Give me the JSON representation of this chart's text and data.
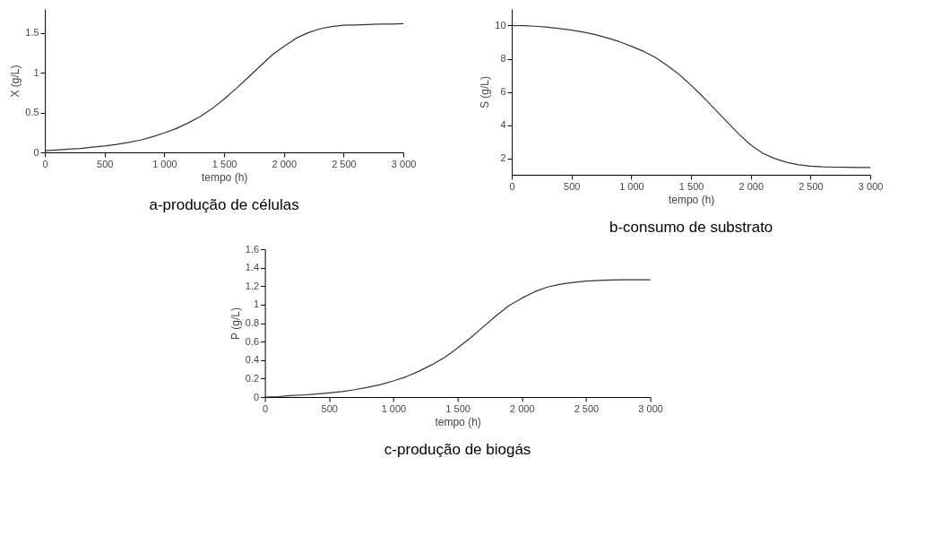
{
  "chart_data": [
    {
      "type": "line",
      "title": "a-produção de células",
      "xlabel": "tempo (h)",
      "ylabel": "X (g/L)",
      "grid": false,
      "xlim": [
        0,
        3000
      ],
      "ylim": [
        0,
        1.8
      ],
      "xticks": [
        0,
        500,
        {
          "value": 1000,
          "label": "1 000"
        },
        {
          "value": 1500,
          "label": "1 500"
        },
        {
          "value": 2000,
          "label": "2 000"
        },
        {
          "value": 2500,
          "label": "2 500"
        },
        {
          "value": 3000,
          "label": "3 000"
        }
      ],
      "yticks": [
        0,
        0.5,
        1,
        1.5
      ],
      "x": [
        0,
        100,
        200,
        300,
        400,
        500,
        600,
        700,
        800,
        900,
        1000,
        1100,
        1200,
        1300,
        1400,
        1500,
        1600,
        1700,
        1800,
        1900,
        2000,
        2100,
        2200,
        2300,
        2400,
        2500,
        2600,
        2700,
        2800,
        2900,
        3000
      ],
      "series": [
        {
          "color": "#333333",
          "values": [
            0.02,
            0.03,
            0.04,
            0.05,
            0.065,
            0.08,
            0.1,
            0.125,
            0.155,
            0.195,
            0.245,
            0.3,
            0.37,
            0.45,
            0.55,
            0.67,
            0.8,
            0.94,
            1.08,
            1.22,
            1.33,
            1.43,
            1.5,
            1.55,
            1.58,
            1.595,
            1.6,
            1.605,
            1.61,
            1.61,
            1.615
          ]
        }
      ]
    },
    {
      "type": "line",
      "title": "b-consumo de substrato",
      "xlabel": "tempo (h)",
      "ylabel": "S (g/L)",
      "grid": false,
      "xlim": [
        0,
        3000
      ],
      "ylim": [
        1,
        11
      ],
      "xticks": [
        0,
        500,
        {
          "value": 1000,
          "label": "1 000"
        },
        {
          "value": 1500,
          "label": "1 500"
        },
        {
          "value": 2000,
          "label": "2 000"
        },
        {
          "value": 2500,
          "label": "2 500"
        },
        {
          "value": 3000,
          "label": "3 000"
        }
      ],
      "yticks": [
        2,
        4,
        6,
        8,
        10
      ],
      "x": [
        0,
        100,
        200,
        300,
        400,
        500,
        600,
        700,
        800,
        900,
        1000,
        1100,
        1200,
        1300,
        1400,
        1500,
        1600,
        1700,
        1800,
        1900,
        2000,
        2100,
        2200,
        2300,
        2400,
        2500,
        2600,
        2700,
        2800,
        2900,
        3000
      ],
      "series": [
        {
          "color": "#333333",
          "values": [
            10,
            9.99,
            9.96,
            9.9,
            9.82,
            9.72,
            9.6,
            9.45,
            9.25,
            9.03,
            8.75,
            8.45,
            8.08,
            7.6,
            7.05,
            6.4,
            5.7,
            4.95,
            4.2,
            3.45,
            2.8,
            2.3,
            1.98,
            1.75,
            1.6,
            1.52,
            1.48,
            1.46,
            1.45,
            1.44,
            1.44
          ]
        }
      ]
    },
    {
      "type": "line",
      "title": "c-produção de biogás",
      "xlabel": "tempo (h)",
      "ylabel": "P (g/L)",
      "grid": false,
      "xlim": [
        0,
        3000
      ],
      "ylim": [
        0,
        1.6
      ],
      "xticks": [
        0,
        500,
        {
          "value": 1000,
          "label": "1 000"
        },
        {
          "value": 1500,
          "label": "1 500"
        },
        {
          "value": 2000,
          "label": "2 000"
        },
        {
          "value": 2500,
          "label": "2 500"
        },
        {
          "value": 3000,
          "label": "3 000"
        }
      ],
      "yticks": [
        0,
        0.2,
        0.4,
        0.6,
        0.8,
        1,
        1.2,
        1.4,
        1.6
      ],
      "x": [
        0,
        100,
        200,
        300,
        400,
        500,
        600,
        700,
        800,
        900,
        1000,
        1100,
        1200,
        1300,
        1400,
        1500,
        1600,
        1700,
        1800,
        1900,
        2000,
        2100,
        2200,
        2300,
        2400,
        2500,
        2600,
        2700,
        2800,
        2900,
        3000
      ],
      "series": [
        {
          "color": "#333333",
          "values": [
            0,
            0.005,
            0.015,
            0.022,
            0.032,
            0.045,
            0.06,
            0.08,
            0.105,
            0.135,
            0.175,
            0.22,
            0.28,
            0.35,
            0.43,
            0.53,
            0.64,
            0.76,
            0.88,
            0.99,
            1.07,
            1.14,
            1.19,
            1.22,
            1.24,
            1.255,
            1.262,
            1.267,
            1.27,
            1.27,
            1.27
          ]
        }
      ]
    }
  ]
}
